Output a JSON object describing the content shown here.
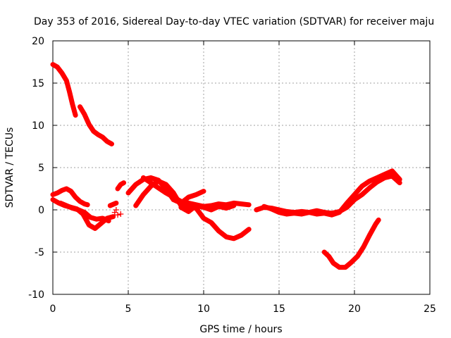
{
  "chart_data": {
    "type": "scatter",
    "title": "Day 353 of 2016, Sidereal Day-to-day VTEC variation (SDTVAR) for receiver maju",
    "xlabel": "GPS time / hours",
    "ylabel": "SDTVAR / TECUs",
    "xlim": [
      0,
      25
    ],
    "ylim": [
      -10,
      20
    ],
    "xticks": [
      0,
      5,
      10,
      15,
      20,
      25
    ],
    "yticks": [
      -10,
      -5,
      0,
      5,
      10,
      15,
      20
    ],
    "grid": true,
    "legend": "none",
    "marker": "plus",
    "color": "#ff0000",
    "series": [
      {
        "name": "s1",
        "x": [
          0.0,
          0.3,
          0.6,
          0.9,
          1.1,
          1.3,
          1.5
        ],
        "y": [
          17.2,
          16.9,
          16.2,
          15.3,
          14.0,
          12.5,
          11.2
        ]
      },
      {
        "name": "s2",
        "x": [
          1.8,
          2.1,
          2.4,
          2.7,
          3.0,
          3.3,
          3.6,
          3.9
        ],
        "y": [
          12.2,
          11.3,
          10.1,
          9.3,
          8.9,
          8.6,
          8.1,
          7.8
        ]
      },
      {
        "name": "s3",
        "x": [
          0.0,
          0.3,
          0.6,
          0.9,
          1.2,
          1.5,
          1.8,
          2.1,
          2.3
        ],
        "y": [
          1.8,
          2.0,
          2.3,
          2.5,
          2.2,
          1.5,
          1.0,
          0.7,
          0.6
        ]
      },
      {
        "name": "s4",
        "x": [
          0.0,
          0.4,
          0.8,
          1.2,
          1.6,
          2.0,
          2.4,
          2.8,
          3.2,
          3.6,
          4.0
        ],
        "y": [
          1.2,
          0.8,
          0.5,
          0.3,
          0.1,
          -0.5,
          -1.8,
          -2.2,
          -1.6,
          -1.0,
          -0.8
        ]
      },
      {
        "name": "s5",
        "x": [
          0.5,
          0.9,
          1.3,
          1.7,
          2.1,
          2.5,
          2.9,
          3.3,
          3.7
        ],
        "y": [
          0.8,
          0.5,
          0.2,
          0.0,
          -0.3,
          -0.9,
          -1.1,
          -1.0,
          -1.3
        ]
      },
      {
        "name": "s6",
        "x": [
          3.8,
          4.2
        ],
        "y": [
          0.5,
          0.8
        ]
      },
      {
        "name": "s7",
        "x": [
          4.3,
          4.5,
          4.7
        ],
        "y": [
          2.5,
          3.0,
          3.2
        ]
      },
      {
        "name": "s8",
        "x": [
          5.0,
          5.5,
          6.0,
          6.5,
          7.0,
          7.5,
          8.0,
          8.5,
          9.0,
          9.5,
          10.0
        ],
        "y": [
          2.0,
          3.0,
          3.6,
          3.8,
          3.5,
          2.5,
          1.2,
          0.8,
          1.5,
          1.8,
          2.2
        ]
      },
      {
        "name": "s9",
        "x": [
          5.5,
          6.0,
          6.5,
          7.0,
          7.5,
          8.0,
          8.5,
          9.0,
          9.5,
          10.0,
          10.5,
          11.0,
          11.5,
          12.0,
          12.5,
          13.0
        ],
        "y": [
          0.5,
          1.8,
          2.8,
          3.4,
          3.0,
          2.0,
          0.5,
          0.3,
          0.2,
          -1.0,
          -1.5,
          -2.5,
          -3.2,
          -3.4,
          -3.0,
          -2.3
        ]
      },
      {
        "name": "s10",
        "x": [
          6.0,
          6.5,
          7.0,
          7.5,
          8.0,
          8.5,
          9.0,
          9.5,
          10.0,
          10.5,
          11.0,
          11.5,
          12.0,
          12.5,
          13.0
        ],
        "y": [
          3.8,
          3.2,
          2.6,
          2.0,
          1.5,
          1.0,
          0.8,
          0.6,
          0.4,
          0.5,
          0.7,
          0.6,
          0.8,
          0.7,
          0.6
        ]
      },
      {
        "name": "s11",
        "x": [
          8.5,
          9.0,
          9.5,
          10.0,
          10.5,
          11.0,
          11.5,
          12.0
        ],
        "y": [
          0.3,
          -0.2,
          0.5,
          0.3,
          0.0,
          0.4,
          0.2,
          0.5
        ]
      },
      {
        "name": "s12",
        "x": [
          13.5,
          14.0,
          14.5,
          15.0,
          15.5,
          16.0,
          16.5,
          17.0,
          17.5,
          18.0,
          18.5,
          19.0,
          19.5,
          20.0,
          20.5,
          21.0,
          21.5,
          22.0,
          22.5,
          23.0
        ],
        "y": [
          0.0,
          0.3,
          0.2,
          0.0,
          -0.2,
          -0.3,
          -0.2,
          -0.3,
          -0.1,
          -0.3,
          -0.4,
          -0.2,
          0.3,
          1.2,
          1.8,
          2.6,
          3.3,
          3.8,
          4.0,
          3.2
        ]
      },
      {
        "name": "s13",
        "x": [
          14.0,
          14.5,
          15.0,
          15.5,
          16.0,
          16.5,
          17.0,
          17.5,
          18.0,
          18.5,
          19.0,
          19.5,
          20.0,
          20.5,
          21.0,
          21.5,
          22.0,
          22.5,
          23.0
        ],
        "y": [
          0.4,
          0.1,
          -0.3,
          -0.5,
          -0.4,
          -0.5,
          -0.3,
          -0.5,
          -0.4,
          -0.6,
          -0.3,
          0.8,
          1.8,
          2.8,
          3.4,
          3.8,
          4.2,
          4.6,
          3.6
        ]
      },
      {
        "name": "s14",
        "x": [
          18.0,
          18.3,
          18.6,
          19.0,
          19.4,
          19.8,
          20.2,
          20.6,
          21.0,
          21.4,
          21.6
        ],
        "y": [
          -5.0,
          -5.5,
          -6.3,
          -6.8,
          -6.8,
          -6.2,
          -5.5,
          -4.4,
          -3.0,
          -1.7,
          -1.2
        ]
      }
    ],
    "isolated_points": [
      {
        "x": 4.1,
        "y": -0.3
      },
      {
        "x": 4.3,
        "y": -0.6
      },
      {
        "x": 4.5,
        "y": -0.5
      },
      {
        "x": 4.2,
        "y": 0.0
      }
    ]
  }
}
